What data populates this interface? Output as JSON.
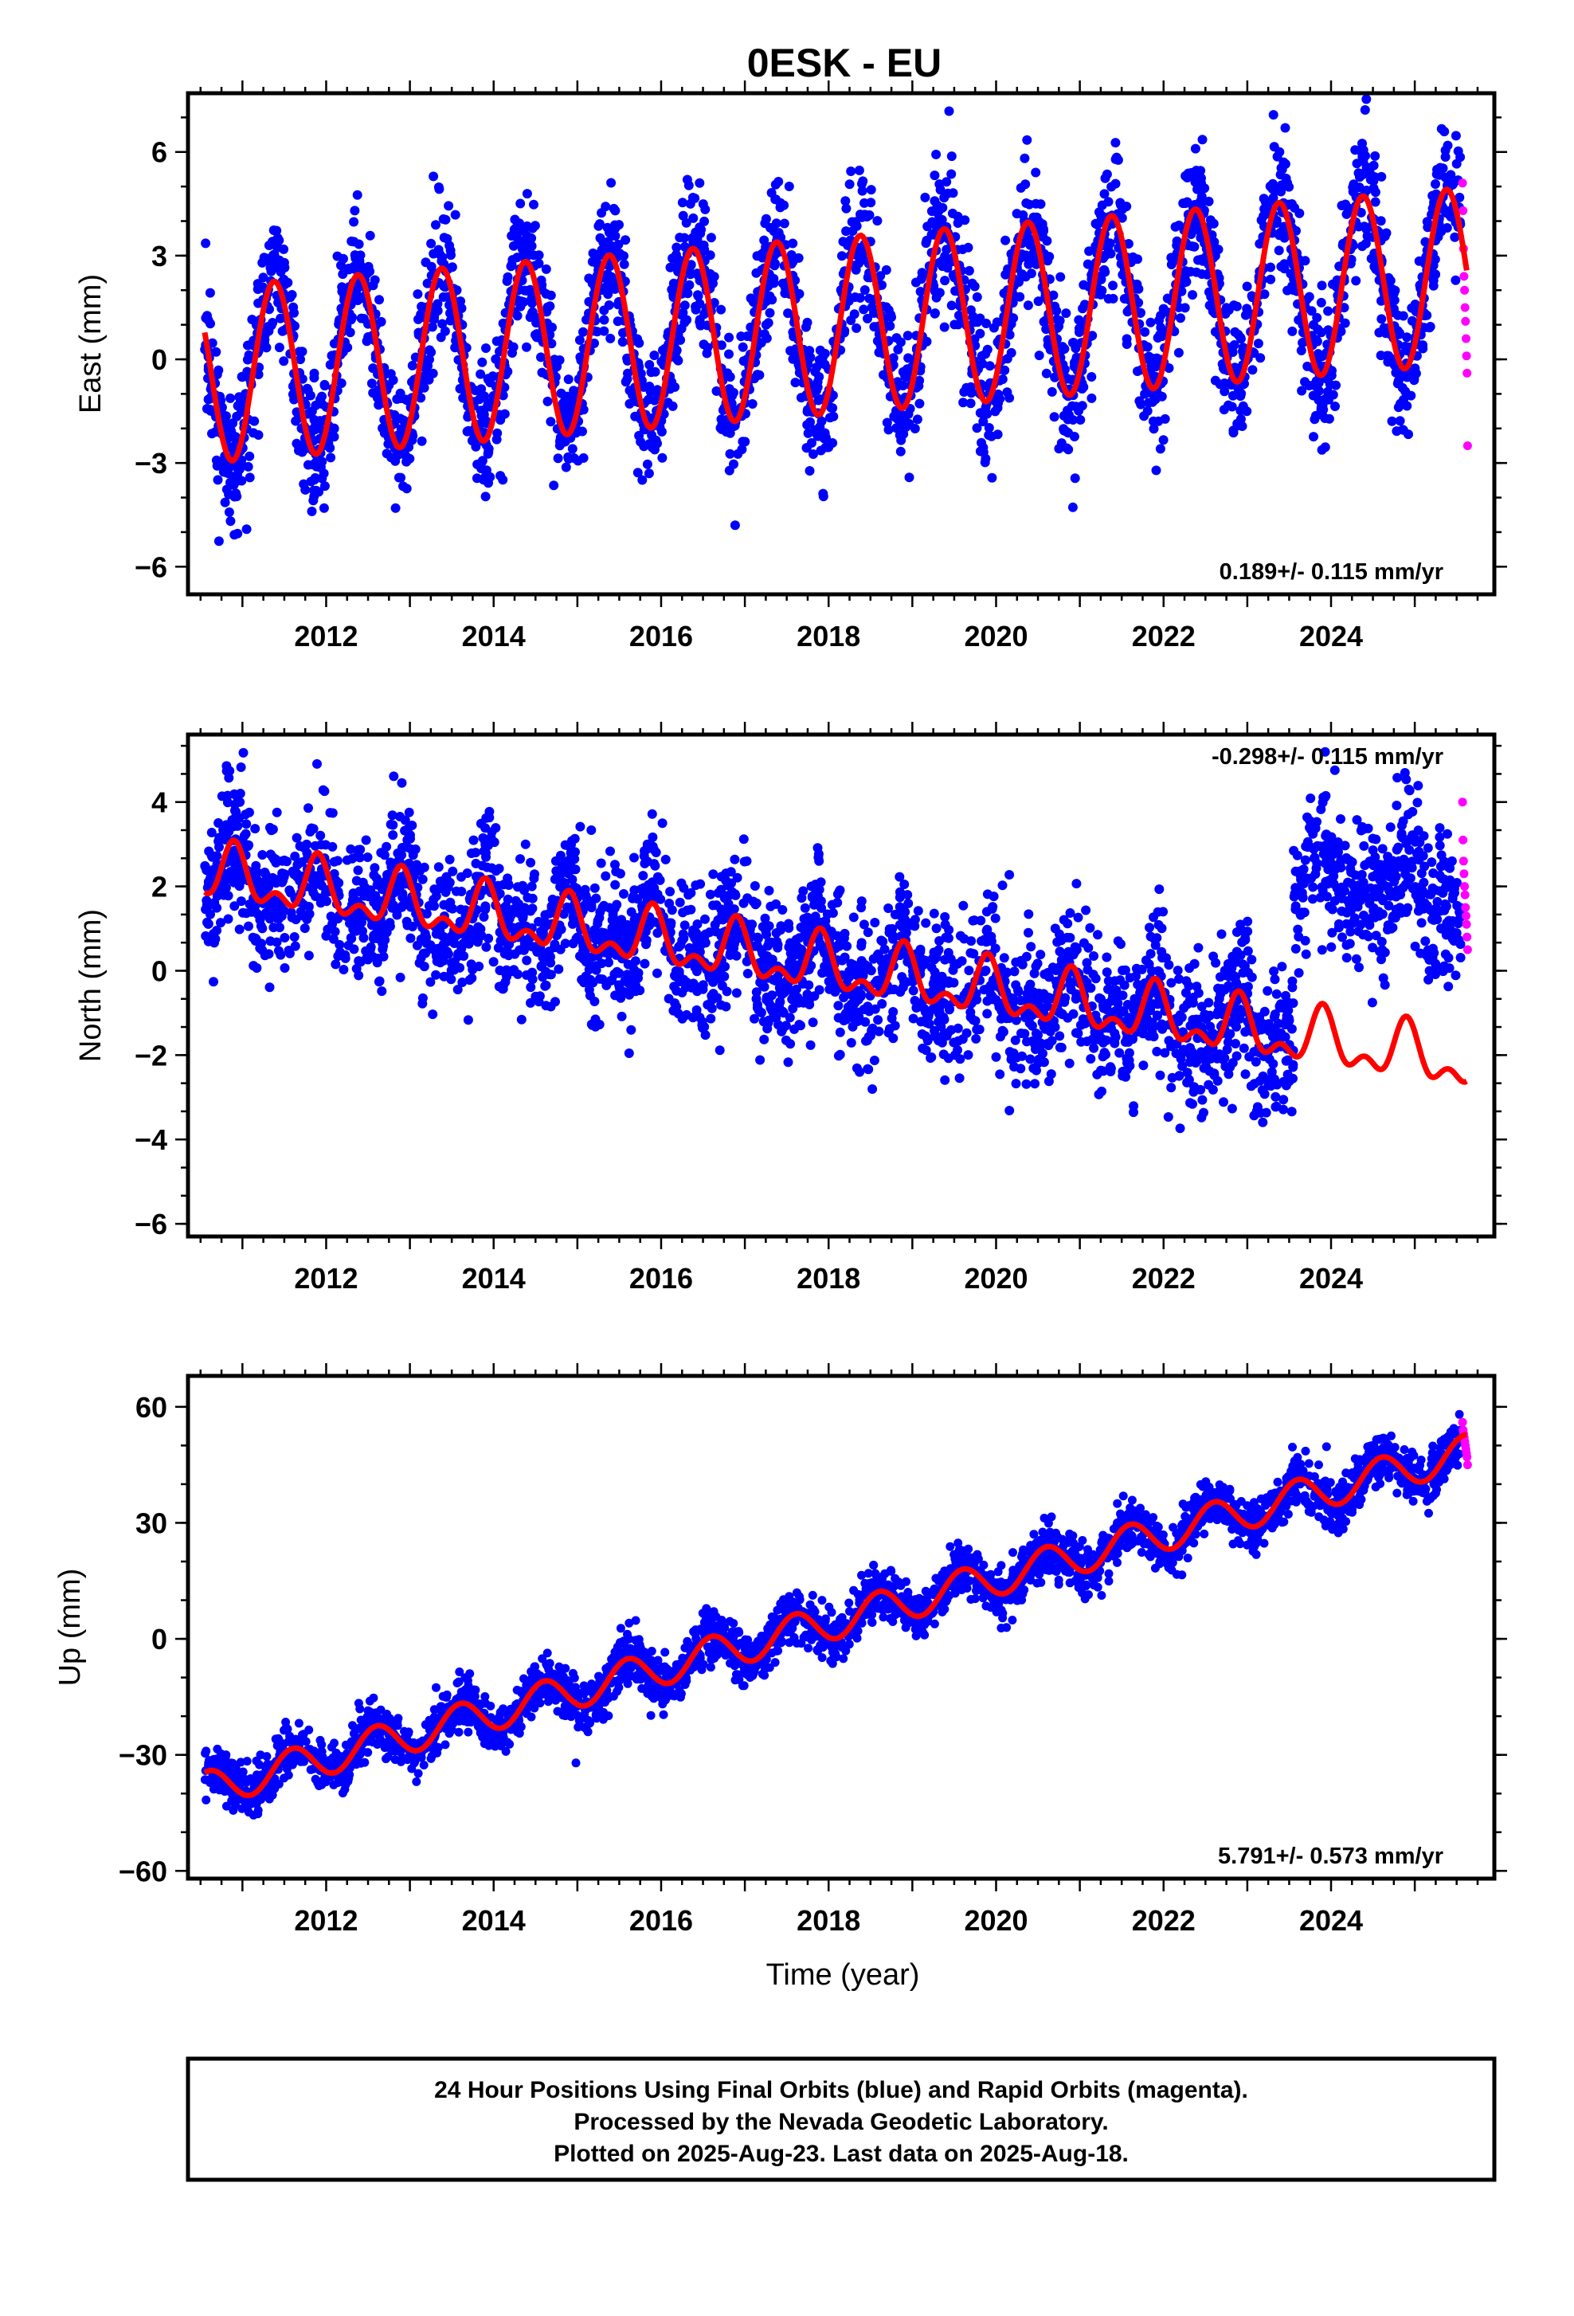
{
  "title": "0ESK - EU",
  "xlabel": "Time (year)",
  "colors": {
    "final": "#0000ff",
    "rapid": "#ff00ff",
    "model": "#ff0000",
    "frame": "#000000"
  },
  "footer": {
    "line1": "24 Hour Positions Using Final Orbits (blue) and Rapid Orbits (magenta).",
    "line2": "Processed by the Nevada Geodetic Laboratory.",
    "line3": "Plotted on 2025-Aug-23. Last data on 2025-Aug-18."
  },
  "chart_data": [
    {
      "type": "scatter",
      "ylabel": "East (mm)",
      "rate_label": "0.189+/- 0.115 mm/yr",
      "rate_position": "bottom-right",
      "xlim": [
        2010.35,
        2025.95
      ],
      "ylim": [
        -6.8,
        7.7
      ],
      "x_ticks": [
        2012,
        2014,
        2016,
        2018,
        2020,
        2022,
        2024
      ],
      "x_tick_labels": [
        "2012",
        "2014",
        "2016",
        "2018",
        "2020",
        "2022",
        "2024"
      ],
      "y_ticks": [
        -6,
        -3,
        0,
        3,
        6
      ],
      "y_tick_labels": [
        "−6",
        "−3",
        "0",
        "3",
        "6"
      ],
      "series": [
        {
          "role": "final",
          "x_range": [
            2010.55,
            2025.55
          ],
          "trend_start": -0.45,
          "rate": 0.19,
          "annual_amp": 2.55,
          "phase_peak": 0.38,
          "noise": 1.0
        },
        {
          "role": "rapid",
          "x_range": [
            2025.57,
            2025.63
          ],
          "values": [
            5.1,
            4.3,
            3.2,
            2.4,
            2.0,
            1.5,
            1.1,
            0.6,
            0.1,
            -0.4,
            -2.5
          ]
        },
        {
          "role": "model",
          "x_range": [
            2010.55,
            2025.62
          ],
          "trend_start": -0.45,
          "rate": 0.19,
          "annual_amp": 2.55,
          "phase_peak": 0.38
        }
      ]
    },
    {
      "type": "scatter",
      "ylabel": "North (mm)",
      "rate_label": "-0.298+/- 0.115 mm/yr",
      "rate_position": "top-right",
      "xlim": [
        2010.35,
        2025.95
      ],
      "ylim": [
        -6.3,
        5.6
      ],
      "x_ticks": [
        2012,
        2014,
        2016,
        2018,
        2020,
        2022,
        2024
      ],
      "x_tick_labels": [
        "2012",
        "2014",
        "2016",
        "2018",
        "2020",
        "2022",
        "2024"
      ],
      "y_ticks": [
        -6,
        -4,
        -2,
        0,
        2,
        4
      ],
      "y_tick_labels": [
        "−6",
        "−4",
        "−2",
        "0",
        "2",
        "4"
      ],
      "offset_epoch": 2023.55,
      "offset_after": 3.9,
      "series": [
        {
          "role": "final",
          "x_range": [
            2010.55,
            2025.55
          ],
          "trend_start": 2.3,
          "rate": -0.298,
          "annual_amp": 0.55,
          "semiannual_amp": 0.35,
          "phase_peak": 0.9,
          "noise": 0.85
        },
        {
          "role": "rapid",
          "x_range": [
            2025.57,
            2025.63
          ],
          "values": [
            4.0,
            3.1,
            2.6,
            2.3,
            2.0,
            1.8,
            1.5,
            1.3,
            1.1,
            0.8,
            0.5
          ]
        },
        {
          "role": "model",
          "x_range": [
            2010.55,
            2025.62
          ],
          "trend_start": 2.3,
          "rate": -0.298,
          "annual_amp": 0.55,
          "semiannual_amp": 0.35,
          "phase_peak": 0.9
        }
      ]
    },
    {
      "type": "scatter",
      "ylabel": "Up (mm)",
      "rate_label": "5.791+/- 0.573 mm/yr",
      "rate_position": "bottom-right",
      "xlim": [
        2010.35,
        2025.95
      ],
      "ylim": [
        -62,
        68
      ],
      "x_ticks": [
        2012,
        2014,
        2016,
        2018,
        2020,
        2022,
        2024
      ],
      "x_tick_labels": [
        "2012",
        "2014",
        "2016",
        "2018",
        "2020",
        "2022",
        "2024"
      ],
      "y_ticks": [
        -60,
        -30,
        0,
        30,
        60
      ],
      "y_tick_labels": [
        "−60",
        "−30",
        "0",
        "30",
        "60"
      ],
      "series": [
        {
          "role": "final",
          "x_range": [
            2010.55,
            2025.55
          ],
          "trend_start": -39,
          "rate": 5.791,
          "annual_amp": 4.6,
          "phase_peak": 0.6,
          "noise": 3.2
        },
        {
          "role": "rapid",
          "x_range": [
            2025.57,
            2025.63
          ],
          "values": [
            56,
            54,
            53,
            52,
            51,
            50,
            49,
            48,
            47,
            45
          ]
        },
        {
          "role": "model",
          "x_range": [
            2010.55,
            2025.62
          ],
          "trend_start": -39,
          "rate": 5.791,
          "annual_amp": 4.6,
          "phase_peak": 0.6
        }
      ]
    }
  ]
}
